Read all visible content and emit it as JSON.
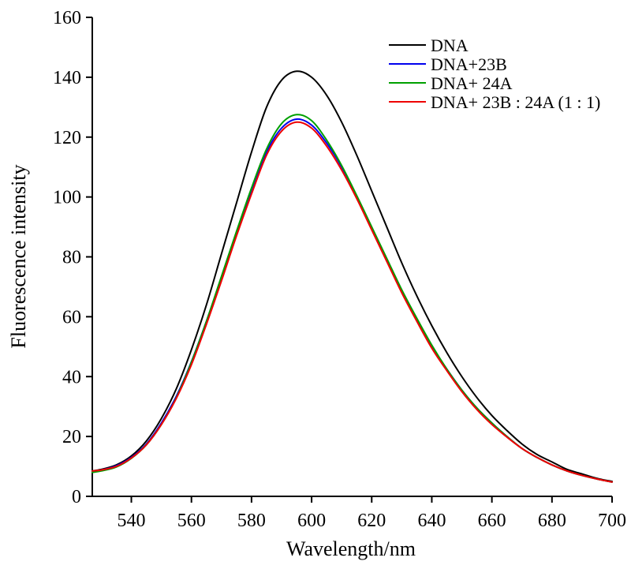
{
  "chart_data": {
    "type": "line",
    "xlabel": "Wavelength/nm",
    "ylabel": "Fluorescence intensity",
    "xlim": [
      527,
      700
    ],
    "ylim": [
      0,
      160
    ],
    "xticks": [
      540,
      560,
      580,
      600,
      620,
      640,
      660,
      680,
      700
    ],
    "yticks": [
      0,
      20,
      40,
      60,
      80,
      100,
      120,
      140,
      160
    ],
    "legend_position": "top-right",
    "grid": false,
    "x": [
      527,
      530,
      535,
      540,
      545,
      550,
      555,
      560,
      565,
      570,
      575,
      580,
      585,
      590,
      595,
      600,
      605,
      610,
      615,
      620,
      625,
      630,
      635,
      640,
      645,
      650,
      655,
      660,
      665,
      670,
      675,
      680,
      685,
      690,
      695,
      700
    ],
    "series": [
      {
        "name": "DNA",
        "color": "#000000",
        "values": [
          8.5,
          9,
          10.5,
          13.5,
          18.5,
          26,
          36,
          49,
          64,
          81,
          98,
          115,
          130,
          139,
          142,
          140,
          134,
          125,
          114,
          102,
          90,
          78,
          67,
          57,
          48,
          40,
          33,
          27,
          22,
          17.5,
          14,
          11.5,
          9,
          7.5,
          6,
          5
        ]
      },
      {
        "name": "DNA+23B",
        "color": "#0000ee",
        "values": [
          8.5,
          8.8,
          10.2,
          13,
          17.5,
          24.5,
          33.5,
          45,
          58.5,
          73,
          88,
          102,
          115,
          123,
          126,
          124,
          118,
          110,
          100,
          89.5,
          79,
          68.5,
          59,
          50,
          42.5,
          35.5,
          29.5,
          24.5,
          20,
          16,
          13,
          10.5,
          8.5,
          7,
          5.8,
          4.8
        ]
      },
      {
        "name": "DNA+ 24A",
        "color": "#00a000",
        "values": [
          8,
          8.5,
          9.8,
          12.7,
          17.2,
          24,
          33,
          44.8,
          58.5,
          73.5,
          88.5,
          103,
          116,
          124.5,
          127.5,
          125.5,
          119,
          110.5,
          100.5,
          90,
          79.5,
          69,
          59.5,
          50.5,
          42.5,
          35.5,
          29.5,
          24.5,
          20,
          16,
          13,
          10.5,
          8.5,
          7,
          5.8,
          4.8
        ]
      },
      {
        "name": "DNA+ 23B : 24A (1 : 1)",
        "color": "#ee0000",
        "values": [
          8.5,
          8.8,
          10,
          12.8,
          17.2,
          24,
          32.8,
          44,
          57.5,
          72,
          87,
          101,
          114,
          122,
          125,
          123,
          117,
          109,
          99.5,
          89,
          78.5,
          68,
          58.5,
          49.5,
          42,
          35,
          29,
          24,
          19.8,
          16,
          13,
          10.5,
          8.5,
          7,
          5.8,
          4.8
        ]
      }
    ]
  }
}
